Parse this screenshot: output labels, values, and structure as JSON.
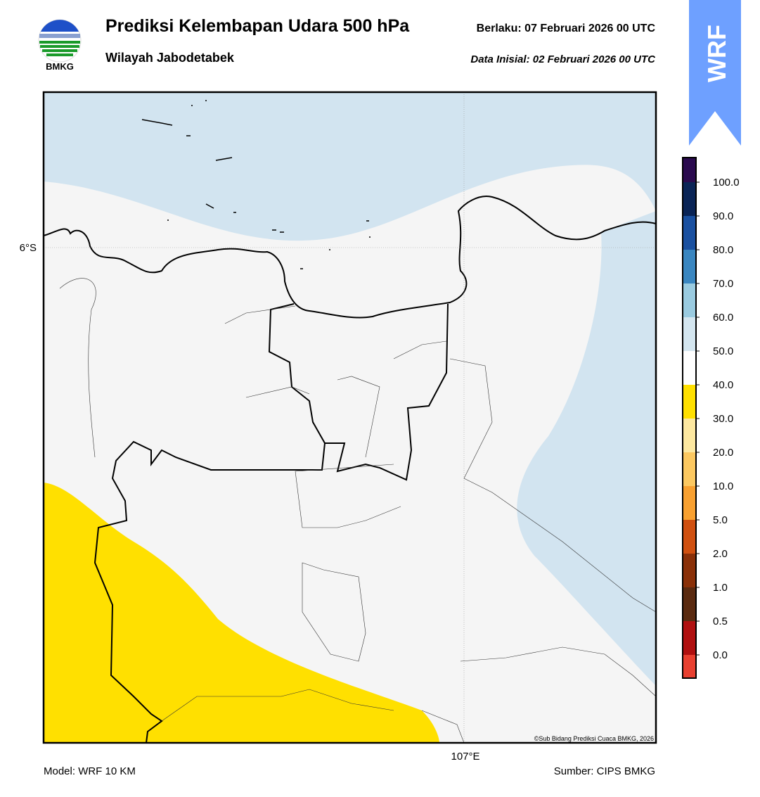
{
  "header": {
    "logo": "BMKG",
    "title": "Prediksi Kelembapan Udara 500 hPa",
    "subtitle": "Wilayah Jabodetabek",
    "valid": "Berlaku:  07 Februari 2026 00 UTC",
    "init": "Data Inisial:  02 Februari 2026 00 UTC",
    "badge": "WRF"
  },
  "map": {
    "lat_label": "6°S",
    "lon_label": "107°E",
    "credit": "©Sub Bidang Prediksi Cuaca BMKG, 2026"
  },
  "colorbar": {
    "labels": [
      "100.0",
      "90.0",
      "80.0",
      "70.0",
      "60.0",
      "50.0",
      "40.0",
      "30.0",
      "20.0",
      "10.0",
      "5.0",
      "2.0",
      "1.0",
      "0.5",
      "0.0"
    ],
    "colors": [
      "#2a0a4e",
      "#0a2456",
      "#1a50a0",
      "#3a86c0",
      "#9acbe0",
      "#d4e6f0",
      "#ffffff",
      "#ffe000",
      "#fde8a0",
      "#fcc860",
      "#f8a030",
      "#d05010",
      "#8a3008",
      "#5a2a10",
      "#b01010",
      "#e84030"
    ]
  },
  "footer": {
    "model": "Model: WRF 10 KM",
    "source": "Sumber: CIPS BMKG"
  }
}
